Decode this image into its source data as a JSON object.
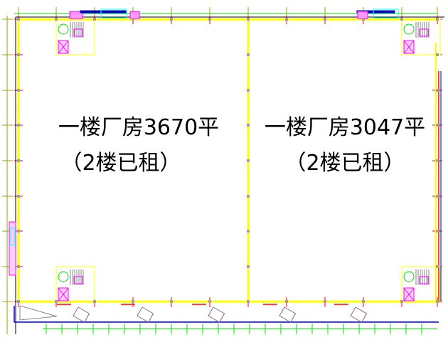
{
  "plan": {
    "left_unit": {
      "title": "一楼厂房3670平",
      "note": "（2楼已租）"
    },
    "right_unit": {
      "title": "一楼厂房3047平",
      "note": "（2楼已租）"
    }
  },
  "colors": {
    "wall": "#ffff00",
    "axis": "#ff0000",
    "dimension": "#00e000",
    "stair": "#ff00ff",
    "window": "#00ffff",
    "boundary": "#0000cc",
    "column": "#a0a0a0",
    "outline": "#000000"
  }
}
